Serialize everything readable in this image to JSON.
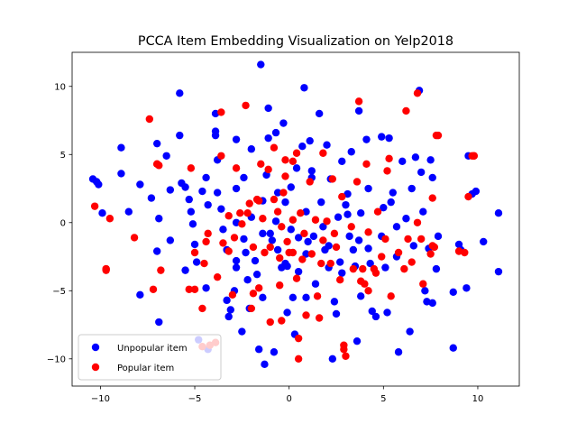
{
  "chart_data": {
    "type": "scatter",
    "title": "PCCA Item Embedding Visualization on Yelp2018",
    "xlabel": "",
    "ylabel": "",
    "xlim": [
      -11.5,
      12.2
    ],
    "ylim": [
      -12.0,
      12.5
    ],
    "xticks": [
      -10,
      -5,
      0,
      5,
      10
    ],
    "yticks": [
      -10,
      -5,
      0,
      5,
      10
    ],
    "grid": false,
    "legend": {
      "placement": "lower-left"
    },
    "series": [
      {
        "name": "Unpopular item",
        "color": "#0000ff",
        "points": [
          [
            -10.4,
            3.2
          ],
          [
            -10.2,
            3.0
          ],
          [
            -10.1,
            2.8
          ],
          [
            -9.9,
            0.7
          ],
          [
            -8.9,
            5.5
          ],
          [
            -8.9,
            3.6
          ],
          [
            -8.5,
            0.8
          ],
          [
            -7.9,
            2.8
          ],
          [
            -7.9,
            -5.3
          ],
          [
            -7.3,
            1.8
          ],
          [
            -7.0,
            5.8
          ],
          [
            -6.9,
            0.3
          ],
          [
            -7.0,
            -2.1
          ],
          [
            -6.9,
            -7.3
          ],
          [
            -6.5,
            4.9
          ],
          [
            -6.3,
            2.4
          ],
          [
            -6.3,
            -1.3
          ],
          [
            -5.8,
            9.5
          ],
          [
            -5.8,
            6.4
          ],
          [
            -5.7,
            2.9
          ],
          [
            -5.5,
            2.6
          ],
          [
            -5.5,
            -3.5
          ],
          [
            -5.3,
            1.7
          ],
          [
            -5.2,
            0.8
          ],
          [
            -5.1,
            -0.1
          ],
          [
            -5.0,
            -1.6
          ],
          [
            -4.9,
            -2.9
          ],
          [
            -4.8,
            -8.6
          ],
          [
            -4.6,
            2.3
          ],
          [
            -4.4,
            3.3
          ],
          [
            -4.4,
            -4.8
          ],
          [
            -4.3,
            1.3
          ],
          [
            -4.3,
            -9.3
          ],
          [
            -3.9,
            8.0
          ],
          [
            -3.9,
            6.4
          ],
          [
            -3.9,
            6.7
          ],
          [
            -3.8,
            4.6
          ],
          [
            -3.8,
            2.2
          ],
          [
            -3.6,
            1.0
          ],
          [
            -3.5,
            -0.5
          ],
          [
            -3.3,
            -2.0
          ],
          [
            -3.3,
            -5.7
          ],
          [
            -3.2,
            -6.9
          ],
          [
            -3.1,
            -6.4
          ],
          [
            -2.9,
            -5.0
          ],
          [
            -2.8,
            6.1
          ],
          [
            -2.8,
            2.5
          ],
          [
            -2.8,
            0.0
          ],
          [
            -2.8,
            -2.8
          ],
          [
            -2.8,
            -3.3
          ],
          [
            -2.5,
            -8.0
          ],
          [
            -2.4,
            3.3
          ],
          [
            -2.4,
            -1.2
          ],
          [
            -2.3,
            -2.2
          ],
          [
            -2.2,
            -4.2
          ],
          [
            -2.1,
            -6.3
          ],
          [
            -2.0,
            5.4
          ],
          [
            -2.0,
            0.4
          ],
          [
            -1.8,
            -2.8
          ],
          [
            -1.7,
            -3.8
          ],
          [
            -1.6,
            -9.3
          ],
          [
            -1.5,
            11.6
          ],
          [
            -1.4,
            1.6
          ],
          [
            -1.4,
            -0.8
          ],
          [
            -1.4,
            -5.5
          ],
          [
            -1.3,
            -10.4
          ],
          [
            -1.2,
            3.5
          ],
          [
            -1.1,
            8.4
          ],
          [
            -1.1,
            6.2
          ],
          [
            -1.0,
            -0.8
          ],
          [
            -0.9,
            -1.3
          ],
          [
            -0.8,
            -9.5
          ],
          [
            -0.7,
            6.6
          ],
          [
            -0.7,
            0.1
          ],
          [
            -0.6,
            2.2
          ],
          [
            -0.6,
            -2.0
          ],
          [
            -0.4,
            -3.3
          ],
          [
            -0.3,
            7.3
          ],
          [
            -0.2,
            1.5
          ],
          [
            -0.2,
            -3.0
          ],
          [
            -0.1,
            -3.2
          ],
          [
            -0.1,
            -6.6
          ],
          [
            0.1,
            2.6
          ],
          [
            0.1,
            -0.5
          ],
          [
            0.2,
            -5.5
          ],
          [
            0.3,
            -8.2
          ],
          [
            0.4,
            4.0
          ],
          [
            0.5,
            -1.1
          ],
          [
            0.5,
            -3.6
          ],
          [
            0.7,
            5.6
          ],
          [
            0.8,
            9.9
          ],
          [
            0.9,
            0.8
          ],
          [
            0.9,
            -2.3
          ],
          [
            0.9,
            -5.5
          ],
          [
            1.0,
            -1.4
          ],
          [
            1.1,
            6.0
          ],
          [
            1.2,
            3.8
          ],
          [
            1.2,
            3.3
          ],
          [
            1.3,
            -1.0
          ],
          [
            1.4,
            -4.5
          ],
          [
            1.6,
            8.0
          ],
          [
            1.7,
            1.5
          ],
          [
            1.8,
            -0.3
          ],
          [
            1.9,
            -2.0
          ],
          [
            2.0,
            5.7
          ],
          [
            2.1,
            -1.7
          ],
          [
            2.1,
            -3.3
          ],
          [
            2.2,
            3.2
          ],
          [
            2.3,
            -10.0
          ],
          [
            2.4,
            -5.8
          ],
          [
            2.5,
            -6.7
          ],
          [
            2.6,
            0.4
          ],
          [
            2.7,
            -2.9
          ],
          [
            2.8,
            4.5
          ],
          [
            2.8,
            -3.7
          ],
          [
            3.0,
            1.3
          ],
          [
            3.1,
            2.1
          ],
          [
            3.1,
            0.6
          ],
          [
            3.2,
            -1.0
          ],
          [
            3.3,
            5.2
          ],
          [
            3.4,
            -2.0
          ],
          [
            3.5,
            -3.2
          ],
          [
            3.6,
            -8.7
          ],
          [
            3.7,
            8.2
          ],
          [
            3.7,
            -1.3
          ],
          [
            3.8,
            0.7
          ],
          [
            3.8,
            -5.4
          ],
          [
            4.1,
            6.1
          ],
          [
            4.2,
            2.5
          ],
          [
            4.2,
            -1.9
          ],
          [
            4.3,
            -3.0
          ],
          [
            4.4,
            -6.5
          ],
          [
            4.6,
            -6.9
          ],
          [
            4.9,
            6.3
          ],
          [
            4.9,
            -1.0
          ],
          [
            5.0,
            1.1
          ],
          [
            5.1,
            -3.3
          ],
          [
            5.2,
            -6.6
          ],
          [
            5.3,
            6.2
          ],
          [
            5.4,
            1.5
          ],
          [
            5.5,
            2.2
          ],
          [
            5.7,
            -0.3
          ],
          [
            5.7,
            -2.5
          ],
          [
            5.8,
            -9.5
          ],
          [
            6.0,
            4.5
          ],
          [
            6.2,
            0.3
          ],
          [
            6.4,
            -8.0
          ],
          [
            6.5,
            2.5
          ],
          [
            6.6,
            -1.7
          ],
          [
            6.7,
            4.8
          ],
          [
            6.9,
            9.7
          ],
          [
            7.0,
            3.7
          ],
          [
            7.1,
            0.8
          ],
          [
            7.2,
            -5.0
          ],
          [
            7.3,
            -5.8
          ],
          [
            7.4,
            -1.9
          ],
          [
            7.5,
            4.6
          ],
          [
            7.6,
            3.3
          ],
          [
            7.6,
            -5.9
          ],
          [
            7.8,
            -3.4
          ],
          [
            7.9,
            -1.0
          ],
          [
            8.7,
            -5.1
          ],
          [
            8.7,
            -9.2
          ],
          [
            9.0,
            -1.6
          ],
          [
            9.1,
            -2.0
          ],
          [
            9.4,
            -4.8
          ],
          [
            9.5,
            4.9
          ],
          [
            9.7,
            2.1
          ],
          [
            9.9,
            2.3
          ],
          [
            10.3,
            -1.4
          ],
          [
            11.1,
            0.7
          ],
          [
            11.1,
            -3.6
          ]
        ]
      },
      {
        "name": "Popular item",
        "color": "#ff0000",
        "points": [
          [
            -10.3,
            1.2
          ],
          [
            -9.7,
            -3.4
          ],
          [
            -9.7,
            -3.4
          ],
          [
            -9.5,
            0.3
          ],
          [
            -8.2,
            -1.1
          ],
          [
            -7.4,
            7.6
          ],
          [
            -7.2,
            -4.9
          ],
          [
            -7.0,
            4.3
          ],
          [
            -7.0,
            4.3
          ],
          [
            -6.8,
            -3.5
          ],
          [
            -5.3,
            -4.9
          ],
          [
            -5.2,
            4.0
          ],
          [
            -5.0,
            -4.9
          ],
          [
            -5.0,
            -2.2
          ],
          [
            -4.6,
            -6.3
          ],
          [
            -4.6,
            -9.1
          ],
          [
            -4.5,
            -3.0
          ],
          [
            -4.4,
            -1.4
          ],
          [
            -4.3,
            -0.8
          ],
          [
            -4.2,
            -9.0
          ],
          [
            -3.9,
            -8.8
          ],
          [
            -3.8,
            -4.0
          ],
          [
            -3.6,
            8.1
          ],
          [
            -3.6,
            4.9
          ],
          [
            -3.5,
            -1.5
          ],
          [
            -3.2,
            0.5
          ],
          [
            -3.2,
            -2.1
          ],
          [
            -3.0,
            -5.3
          ],
          [
            -2.9,
            -1.1
          ],
          [
            -2.8,
            4.0
          ],
          [
            -2.6,
            0.7
          ],
          [
            -2.5,
            -0.1
          ],
          [
            -2.3,
            8.6
          ],
          [
            -2.2,
            0.7
          ],
          [
            -2.1,
            1.4
          ],
          [
            -2.0,
            -6.3
          ],
          [
            -1.9,
            -1.8
          ],
          [
            -1.9,
            -5.2
          ],
          [
            -1.7,
            1.7
          ],
          [
            -1.6,
            1.6
          ],
          [
            -1.6,
            -4.8
          ],
          [
            -1.5,
            4.3
          ],
          [
            -1.4,
            0.3
          ],
          [
            -1.3,
            -2.2
          ],
          [
            -1.1,
            3.9
          ],
          [
            -1.0,
            -1.8
          ],
          [
            -1.0,
            -7.3
          ],
          [
            -0.8,
            5.5
          ],
          [
            -0.8,
            1.7
          ],
          [
            -0.6,
            0.8
          ],
          [
            -0.5,
            -2.6
          ],
          [
            -0.5,
            -4.6
          ],
          [
            -0.4,
            -7.2
          ],
          [
            -0.4,
            -0.3
          ],
          [
            -0.3,
            2.2
          ],
          [
            -0.2,
            4.6
          ],
          [
            -0.2,
            3.4
          ],
          [
            -0.1,
            -1.4
          ],
          [
            0.0,
            -2.2
          ],
          [
            0.2,
            4.5
          ],
          [
            0.2,
            0.2
          ],
          [
            0.2,
            -2.2
          ],
          [
            0.4,
            5.1
          ],
          [
            0.4,
            -4.1
          ],
          [
            0.5,
            -8.5
          ],
          [
            0.5,
            -10.0
          ],
          [
            0.6,
            0.7
          ],
          [
            0.7,
            -2.7
          ],
          [
            0.8,
            -0.8
          ],
          [
            0.9,
            -6.8
          ],
          [
            1.1,
            3.0
          ],
          [
            1.2,
            -2.3
          ],
          [
            1.4,
            0.2
          ],
          [
            1.5,
            -5.4
          ],
          [
            1.6,
            -7.0
          ],
          [
            1.7,
            -3.0
          ],
          [
            1.8,
            5.1
          ],
          [
            1.8,
            -1.3
          ],
          [
            2.0,
            0.1
          ],
          [
            2.2,
            -3.0
          ],
          [
            2.3,
            3.2
          ],
          [
            2.4,
            -0.8
          ],
          [
            2.5,
            -1.8
          ],
          [
            2.7,
            -4.2
          ],
          [
            2.8,
            1.9
          ],
          [
            2.9,
            -9.0
          ],
          [
            2.9,
            -9.3
          ],
          [
            3.0,
            -9.8
          ],
          [
            3.3,
            -0.3
          ],
          [
            3.4,
            -3.4
          ],
          [
            3.6,
            3.0
          ],
          [
            3.7,
            8.9
          ],
          [
            3.8,
            -4.3
          ],
          [
            3.9,
            -3.4
          ],
          [
            4.0,
            -4.5
          ],
          [
            4.1,
            4.3
          ],
          [
            4.2,
            -0.7
          ],
          [
            4.2,
            -5.0
          ],
          [
            4.5,
            -3.4
          ],
          [
            4.6,
            -3.7
          ],
          [
            4.7,
            0.8
          ],
          [
            4.9,
            -2.5
          ],
          [
            5.1,
            -1.2
          ],
          [
            5.2,
            3.8
          ],
          [
            5.3,
            4.7
          ],
          [
            5.4,
            -5.4
          ],
          [
            5.8,
            -2.2
          ],
          [
            6.1,
            -3.4
          ],
          [
            6.2,
            8.2
          ],
          [
            6.3,
            -1.2
          ],
          [
            6.5,
            -2.9
          ],
          [
            6.8,
            9.5
          ],
          [
            6.8,
            0.0
          ],
          [
            7.0,
            -1.2
          ],
          [
            7.1,
            -4.5
          ],
          [
            7.5,
            -2.3
          ],
          [
            7.6,
            1.8
          ],
          [
            7.6,
            -1.7
          ],
          [
            7.7,
            -1.8
          ],
          [
            7.8,
            6.4
          ],
          [
            7.9,
            6.4
          ],
          [
            9.0,
            -2.1
          ],
          [
            9.3,
            -2.2
          ],
          [
            9.5,
            1.9
          ],
          [
            9.7,
            4.9
          ],
          [
            9.8,
            4.9
          ],
          [
            9.8,
            4.9
          ],
          [
            -6.9,
            4.2
          ],
          [
            -9.7,
            -3.5
          ]
        ]
      }
    ]
  }
}
